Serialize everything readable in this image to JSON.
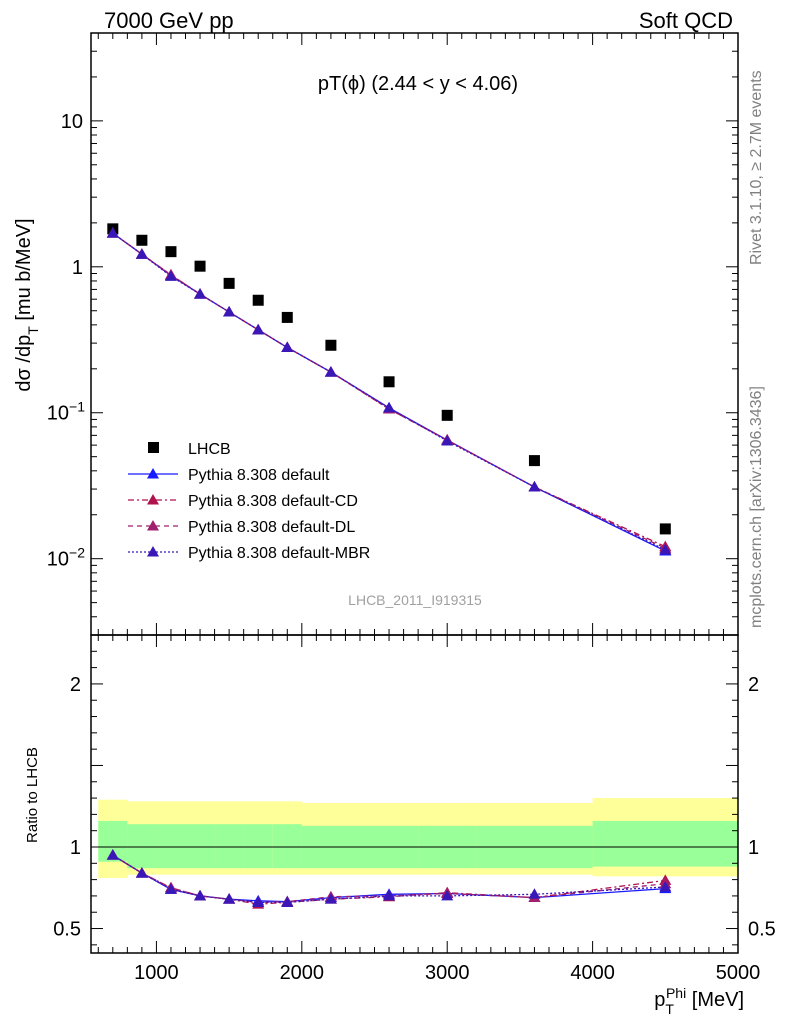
{
  "header": {
    "left": "7000 GeV pp",
    "right": "Soft QCD"
  },
  "side_labels": {
    "rivet": "Rivet 3.1.10, ≥ 2.7M events",
    "mcplots": "mcplots.cern.ch [arXiv:1306.3436]"
  },
  "colors": {
    "data": "#000000",
    "default": "#1a1aff",
    "cd": "#b0124e",
    "dl": "#a0206e",
    "mbr": "#3a18b8",
    "band_inner": "#99ff99",
    "band_outer": "#ffff99"
  },
  "chart_data": [
    {
      "type": "scatter",
      "title": "pT(ϕ) (2.44 < y < 4.06)",
      "analysis_label": "LHCB_2011_I919315",
      "ylabel": "dσ /dp_T [mu b/MeV]",
      "xlabel": "p_T^Phi [MeV]",
      "y_scale": "log",
      "xlim": [
        550,
        5000
      ],
      "ylim": [
        0.003,
        40
      ],
      "y_tick_labels": [
        "10^-2",
        "10^-1",
        "1",
        "10"
      ],
      "x": [
        700,
        900,
        1100,
        1300,
        1500,
        1700,
        1900,
        2200,
        2600,
        3000,
        3600,
        4500
      ],
      "series": [
        {
          "name": "LHCB",
          "style": "data",
          "values": [
            1.82,
            1.52,
            1.27,
            1.01,
            0.77,
            0.59,
            0.45,
            0.29,
            0.163,
            0.096,
            0.047,
            0.016
          ]
        },
        {
          "name": "Pythia 8.308 default",
          "style": "solid",
          "values": [
            1.7,
            1.22,
            0.87,
            0.65,
            0.49,
            0.37,
            0.28,
            0.19,
            0.108,
            0.065,
            0.031,
            0.0113
          ]
        },
        {
          "name": "Pythia 8.308 default-CD",
          "style": "dashdot",
          "values": [
            1.7,
            1.22,
            0.88,
            0.65,
            0.49,
            0.37,
            0.28,
            0.19,
            0.106,
            0.065,
            0.031,
            0.0121
          ]
        },
        {
          "name": "Pythia 8.308 default-DL",
          "style": "dashed",
          "values": [
            1.7,
            1.22,
            0.88,
            0.65,
            0.49,
            0.37,
            0.28,
            0.19,
            0.106,
            0.065,
            0.031,
            0.0118
          ]
        },
        {
          "name": "Pythia 8.308 default-MBR",
          "style": "dotted",
          "values": [
            1.7,
            1.22,
            0.86,
            0.65,
            0.49,
            0.37,
            0.28,
            0.19,
            0.108,
            0.064,
            0.031,
            0.0115
          ]
        }
      ],
      "legend_position": "lower-left"
    },
    {
      "type": "line",
      "ylabel": "Ratio to LHCB",
      "xlabel": "p_T^Phi [MeV]",
      "xlim": [
        550,
        5000
      ],
      "ylim": [
        0.35,
        2.3
      ],
      "y_tick_labels": [
        "0.5",
        "1",
        "2"
      ],
      "x_tick_labels": [
        "1000",
        "2000",
        "3000",
        "4000",
        "5000"
      ],
      "x": [
        700,
        900,
        1100,
        1300,
        1500,
        1700,
        1900,
        2200,
        2600,
        3000,
        3600,
        4500
      ],
      "reference_line": 1,
      "band_bins": [
        [
          600,
          800
        ],
        [
          800,
          1000
        ],
        [
          1000,
          1200
        ],
        [
          1200,
          1400
        ],
        [
          1400,
          1600
        ],
        [
          1600,
          1800
        ],
        [
          1800,
          2000
        ],
        [
          2000,
          2400
        ],
        [
          2400,
          2800
        ],
        [
          2800,
          3200
        ],
        [
          3200,
          4000
        ],
        [
          4000,
          5000
        ]
      ],
      "band_inner": [
        [
          0.91,
          1.16
        ],
        [
          0.87,
          1.14
        ],
        [
          0.87,
          1.14
        ],
        [
          0.87,
          1.14
        ],
        [
          0.87,
          1.14
        ],
        [
          0.87,
          1.14
        ],
        [
          0.87,
          1.14
        ],
        [
          0.87,
          1.13
        ],
        [
          0.87,
          1.13
        ],
        [
          0.87,
          1.13
        ],
        [
          0.87,
          1.13
        ],
        [
          0.88,
          1.16
        ]
      ],
      "band_outer": [
        [
          0.81,
          1.29
        ],
        [
          0.83,
          1.28
        ],
        [
          0.83,
          1.28
        ],
        [
          0.83,
          1.28
        ],
        [
          0.83,
          1.28
        ],
        [
          0.83,
          1.28
        ],
        [
          0.83,
          1.28
        ],
        [
          0.83,
          1.27
        ],
        [
          0.83,
          1.27
        ],
        [
          0.83,
          1.27
        ],
        [
          0.83,
          1.27
        ],
        [
          0.82,
          1.3
        ]
      ],
      "series": [
        {
          "name": "Pythia 8.308 default",
          "style": "solid",
          "values": [
            0.95,
            0.84,
            0.74,
            0.7,
            0.68,
            0.67,
            0.665,
            0.69,
            0.71,
            0.715,
            0.69,
            0.745
          ]
        },
        {
          "name": "Pythia 8.308 default-CD",
          "style": "dashdot",
          "values": [
            0.95,
            0.84,
            0.75,
            0.7,
            0.68,
            0.65,
            0.66,
            0.68,
            0.695,
            0.72,
            0.69,
            0.795
          ]
        },
        {
          "name": "Pythia 8.308 default-DL",
          "style": "dashed",
          "values": [
            0.95,
            0.84,
            0.75,
            0.7,
            0.68,
            0.66,
            0.665,
            0.695,
            0.7,
            0.715,
            0.69,
            0.775
          ]
        },
        {
          "name": "Pythia 8.308 default-MBR",
          "style": "dotted",
          "values": [
            0.95,
            0.84,
            0.74,
            0.7,
            0.68,
            0.66,
            0.66,
            0.68,
            0.7,
            0.7,
            0.71,
            0.755
          ]
        }
      ]
    }
  ]
}
